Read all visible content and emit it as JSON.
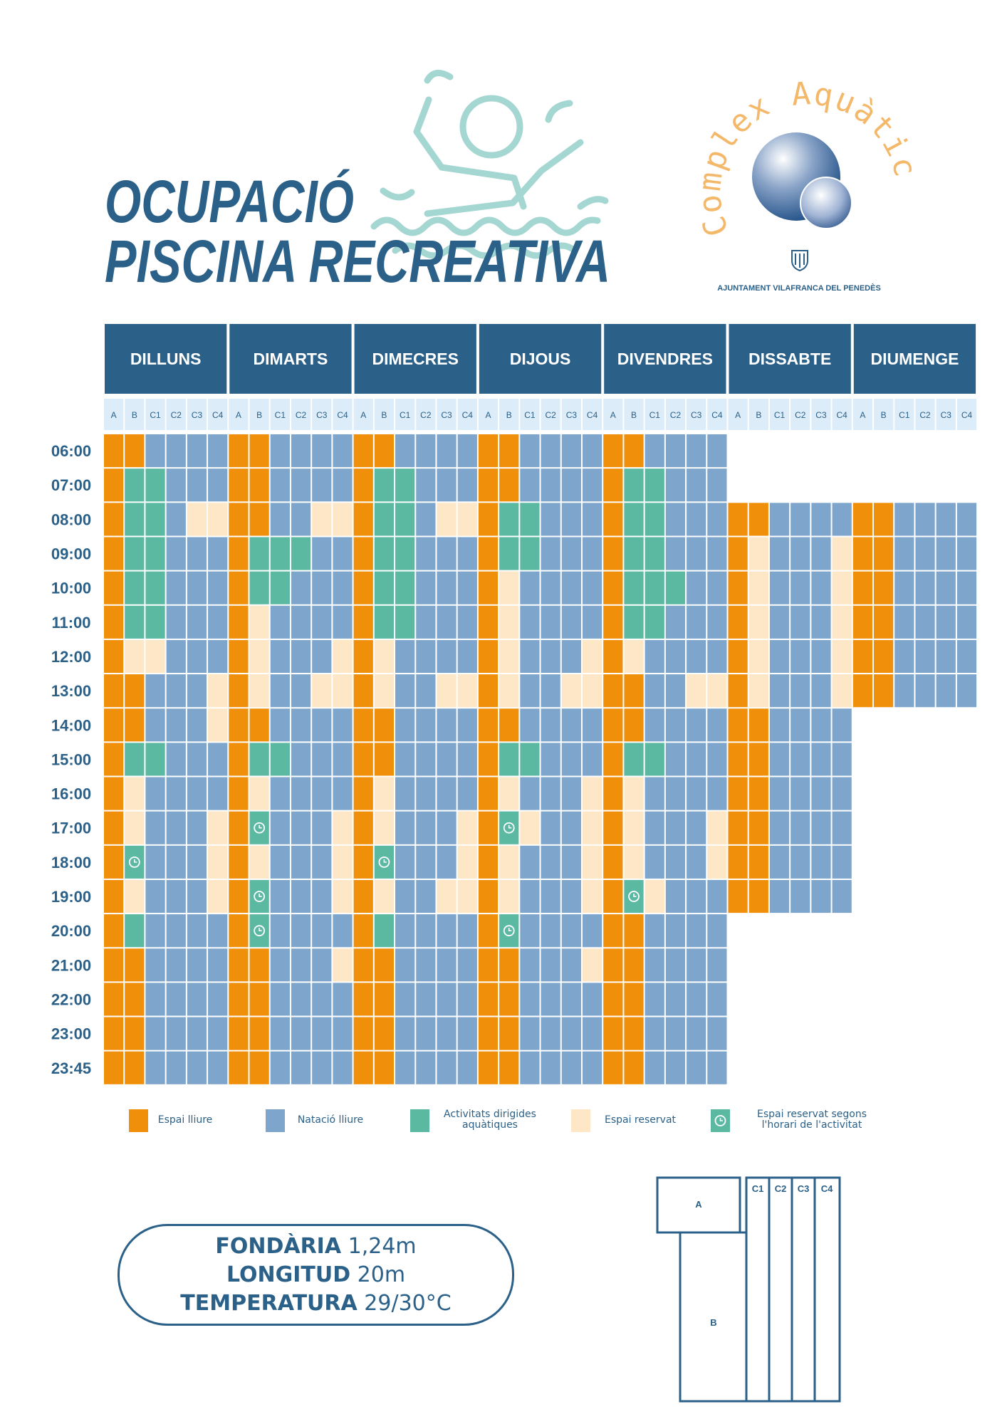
{
  "header": {
    "title_lines": [
      "OCUPACIÓ",
      "PISCINA RECREATIVA"
    ],
    "logo_text": "Complex Aquàtic",
    "council": "AJUNTAMENT VILAFRANCA DEL PENEDÈS"
  },
  "schedule": {
    "days": [
      "DILLUNS",
      "DIMARTS",
      "DIMECRES",
      "DIJOUS",
      "DIVENDRES",
      "DISSABTE",
      "DIUMENGE"
    ],
    "zones": [
      "A",
      "B",
      "C1",
      "C2",
      "C3",
      "C4"
    ],
    "times": [
      "06:00",
      "07:00",
      "08:00",
      "09:00",
      "10:00",
      "11:00",
      "12:00",
      "13:00",
      "14:00",
      "15:00",
      "16:00",
      "17:00",
      "18:00",
      "19:00",
      "20:00",
      "21:00",
      "22:00",
      "23:00",
      "23:45"
    ],
    "cells": [
      [
        [
          0,
          0,
          1,
          1,
          1,
          1
        ],
        [
          0,
          2,
          2,
          1,
          1,
          1
        ],
        [
          0,
          2,
          2,
          1,
          3,
          3
        ],
        [
          0,
          2,
          2,
          1,
          1,
          1
        ],
        [
          0,
          2,
          2,
          1,
          1,
          1
        ],
        [
          0,
          2,
          2,
          1,
          1,
          1
        ],
        [
          0,
          3,
          3,
          1,
          1,
          1
        ],
        [
          0,
          0,
          1,
          1,
          1,
          3
        ],
        [
          0,
          0,
          1,
          1,
          1,
          3
        ],
        [
          0,
          2,
          2,
          1,
          1,
          1
        ],
        [
          0,
          3,
          1,
          1,
          1,
          1
        ],
        [
          0,
          3,
          1,
          1,
          1,
          3
        ],
        [
          0,
          4,
          1,
          1,
          1,
          3
        ],
        [
          0,
          3,
          1,
          1,
          1,
          3
        ],
        [
          0,
          2,
          1,
          1,
          1,
          1
        ],
        [
          0,
          0,
          1,
          1,
          1,
          1
        ],
        [
          0,
          0,
          1,
          1,
          1,
          1
        ],
        [
          0,
          0,
          1,
          1,
          1,
          1
        ],
        [
          0,
          0,
          1,
          1,
          1,
          1
        ]
      ],
      [
        [
          0,
          0,
          1,
          1,
          1,
          1
        ],
        [
          0,
          0,
          1,
          1,
          1,
          1
        ],
        [
          0,
          0,
          1,
          1,
          3,
          3
        ],
        [
          0,
          2,
          2,
          2,
          1,
          1
        ],
        [
          0,
          2,
          2,
          1,
          1,
          1
        ],
        [
          0,
          3,
          1,
          1,
          1,
          1
        ],
        [
          0,
          3,
          1,
          1,
          1,
          3
        ],
        [
          0,
          3,
          1,
          1,
          3,
          3
        ],
        [
          0,
          0,
          1,
          1,
          1,
          1
        ],
        [
          0,
          2,
          2,
          1,
          1,
          1
        ],
        [
          0,
          3,
          1,
          1,
          1,
          1
        ],
        [
          0,
          4,
          1,
          1,
          1,
          3
        ],
        [
          0,
          3,
          1,
          1,
          1,
          3
        ],
        [
          0,
          4,
          1,
          1,
          1,
          3
        ],
        [
          0,
          4,
          1,
          1,
          1,
          1
        ],
        [
          0,
          0,
          1,
          1,
          1,
          3
        ],
        [
          0,
          0,
          1,
          1,
          1,
          1
        ],
        [
          0,
          0,
          1,
          1,
          1,
          1
        ],
        [
          0,
          0,
          1,
          1,
          1,
          1
        ]
      ],
      [
        [
          0,
          0,
          1,
          1,
          1,
          1
        ],
        [
          0,
          2,
          2,
          1,
          1,
          1
        ],
        [
          0,
          2,
          2,
          1,
          3,
          3
        ],
        [
          0,
          2,
          2,
          1,
          1,
          1
        ],
        [
          0,
          2,
          2,
          1,
          1,
          1
        ],
        [
          0,
          2,
          2,
          1,
          1,
          1
        ],
        [
          0,
          3,
          1,
          1,
          1,
          1
        ],
        [
          0,
          3,
          1,
          1,
          3,
          3
        ],
        [
          0,
          0,
          1,
          1,
          1,
          1
        ],
        [
          0,
          0,
          1,
          1,
          1,
          1
        ],
        [
          0,
          3,
          1,
          1,
          1,
          1
        ],
        [
          0,
          3,
          1,
          1,
          1,
          3
        ],
        [
          0,
          4,
          1,
          1,
          1,
          3
        ],
        [
          0,
          3,
          1,
          1,
          3,
          3
        ],
        [
          0,
          2,
          1,
          1,
          1,
          1
        ],
        [
          0,
          0,
          1,
          1,
          1,
          1
        ],
        [
          0,
          0,
          1,
          1,
          1,
          1
        ],
        [
          0,
          0,
          1,
          1,
          1,
          1
        ],
        [
          0,
          0,
          1,
          1,
          1,
          1
        ]
      ],
      [
        [
          0,
          0,
          1,
          1,
          1,
          1
        ],
        [
          0,
          0,
          1,
          1,
          1,
          1
        ],
        [
          0,
          2,
          2,
          1,
          1,
          1
        ],
        [
          0,
          2,
          2,
          1,
          1,
          1
        ],
        [
          0,
          3,
          1,
          1,
          1,
          1
        ],
        [
          0,
          3,
          1,
          1,
          1,
          1
        ],
        [
          0,
          3,
          1,
          1,
          1,
          3
        ],
        [
          0,
          3,
          1,
          1,
          3,
          3
        ],
        [
          0,
          0,
          1,
          1,
          1,
          1
        ],
        [
          0,
          2,
          2,
          1,
          1,
          1
        ],
        [
          0,
          3,
          1,
          1,
          1,
          3
        ],
        [
          0,
          4,
          3,
          1,
          1,
          3
        ],
        [
          0,
          3,
          1,
          1,
          1,
          3
        ],
        [
          0,
          3,
          1,
          1,
          1,
          3
        ],
        [
          0,
          4,
          1,
          1,
          1,
          1
        ],
        [
          0,
          0,
          1,
          1,
          1,
          3
        ],
        [
          0,
          0,
          1,
          1,
          1,
          1
        ],
        [
          0,
          0,
          1,
          1,
          1,
          1
        ],
        [
          0,
          0,
          1,
          1,
          1,
          1
        ]
      ],
      [
        [
          0,
          0,
          1,
          1,
          1,
          1
        ],
        [
          0,
          2,
          2,
          1,
          1,
          1
        ],
        [
          0,
          2,
          2,
          1,
          1,
          1
        ],
        [
          0,
          2,
          2,
          1,
          1,
          1
        ],
        [
          0,
          2,
          2,
          2,
          1,
          1
        ],
        [
          0,
          2,
          2,
          1,
          1,
          1
        ],
        [
          0,
          3,
          1,
          1,
          1,
          1
        ],
        [
          0,
          0,
          1,
          1,
          3,
          3
        ],
        [
          0,
          0,
          1,
          1,
          1,
          1
        ],
        [
          0,
          2,
          2,
          1,
          1,
          1
        ],
        [
          0,
          3,
          1,
          1,
          1,
          1
        ],
        [
          0,
          3,
          1,
          1,
          1,
          3
        ],
        [
          0,
          3,
          1,
          1,
          1,
          3
        ],
        [
          0,
          4,
          3,
          1,
          1,
          1
        ],
        [
          0,
          0,
          1,
          1,
          1,
          1
        ],
        [
          0,
          0,
          1,
          1,
          1,
          1
        ],
        [
          0,
          0,
          1,
          1,
          1,
          1
        ],
        [
          0,
          0,
          1,
          1,
          1,
          1
        ],
        [
          0,
          0,
          1,
          1,
          1,
          1
        ]
      ],
      [
        null,
        null,
        [
          0,
          0,
          1,
          1,
          1,
          1
        ],
        [
          0,
          3,
          1,
          1,
          1,
          3
        ],
        [
          0,
          3,
          1,
          1,
          1,
          3
        ],
        [
          0,
          3,
          1,
          1,
          1,
          3
        ],
        [
          0,
          3,
          1,
          1,
          1,
          3
        ],
        [
          0,
          3,
          1,
          1,
          1,
          3
        ],
        [
          0,
          0,
          1,
          1,
          1,
          1
        ],
        [
          0,
          0,
          1,
          1,
          1,
          1
        ],
        [
          0,
          0,
          1,
          1,
          1,
          1
        ],
        [
          0,
          0,
          1,
          1,
          1,
          1
        ],
        [
          0,
          0,
          1,
          1,
          1,
          1
        ],
        [
          0,
          0,
          1,
          1,
          1,
          1
        ],
        null,
        null,
        null,
        null,
        null
      ],
      [
        null,
        null,
        [
          0,
          0,
          1,
          1,
          1,
          1
        ],
        [
          0,
          0,
          1,
          1,
          1,
          1
        ],
        [
          0,
          0,
          1,
          1,
          1,
          1
        ],
        [
          0,
          0,
          1,
          1,
          1,
          1
        ],
        [
          0,
          0,
          1,
          1,
          1,
          1
        ],
        [
          0,
          0,
          1,
          1,
          1,
          1
        ],
        null,
        null,
        null,
        null,
        null,
        null,
        null,
        null,
        null,
        null,
        null
      ]
    ]
  },
  "legend": [
    {
      "label": "Espai lliure",
      "color": "#f0900a"
    },
    {
      "label": "Natació lliure",
      "color": "#7ea6cc"
    },
    {
      "label": "Activitats dirigides aquàtiques",
      "color": "#5bb9a2"
    },
    {
      "label": "Espai reservat",
      "color": "#fde7c6"
    },
    {
      "label": "Espai reservat segons l'horari de l'activitat",
      "color": "#5bb9a2"
    }
  ],
  "info": [
    {
      "label": "FONDÀRIA",
      "value": "1,24m"
    },
    {
      "label": "LONGITUD",
      "value": "20m"
    },
    {
      "label": "TEMPERATURA",
      "value": "29/30°C"
    }
  ],
  "pool_map": {
    "labels": [
      "A",
      "B",
      "C1",
      "C2",
      "C3",
      "C4"
    ]
  }
}
